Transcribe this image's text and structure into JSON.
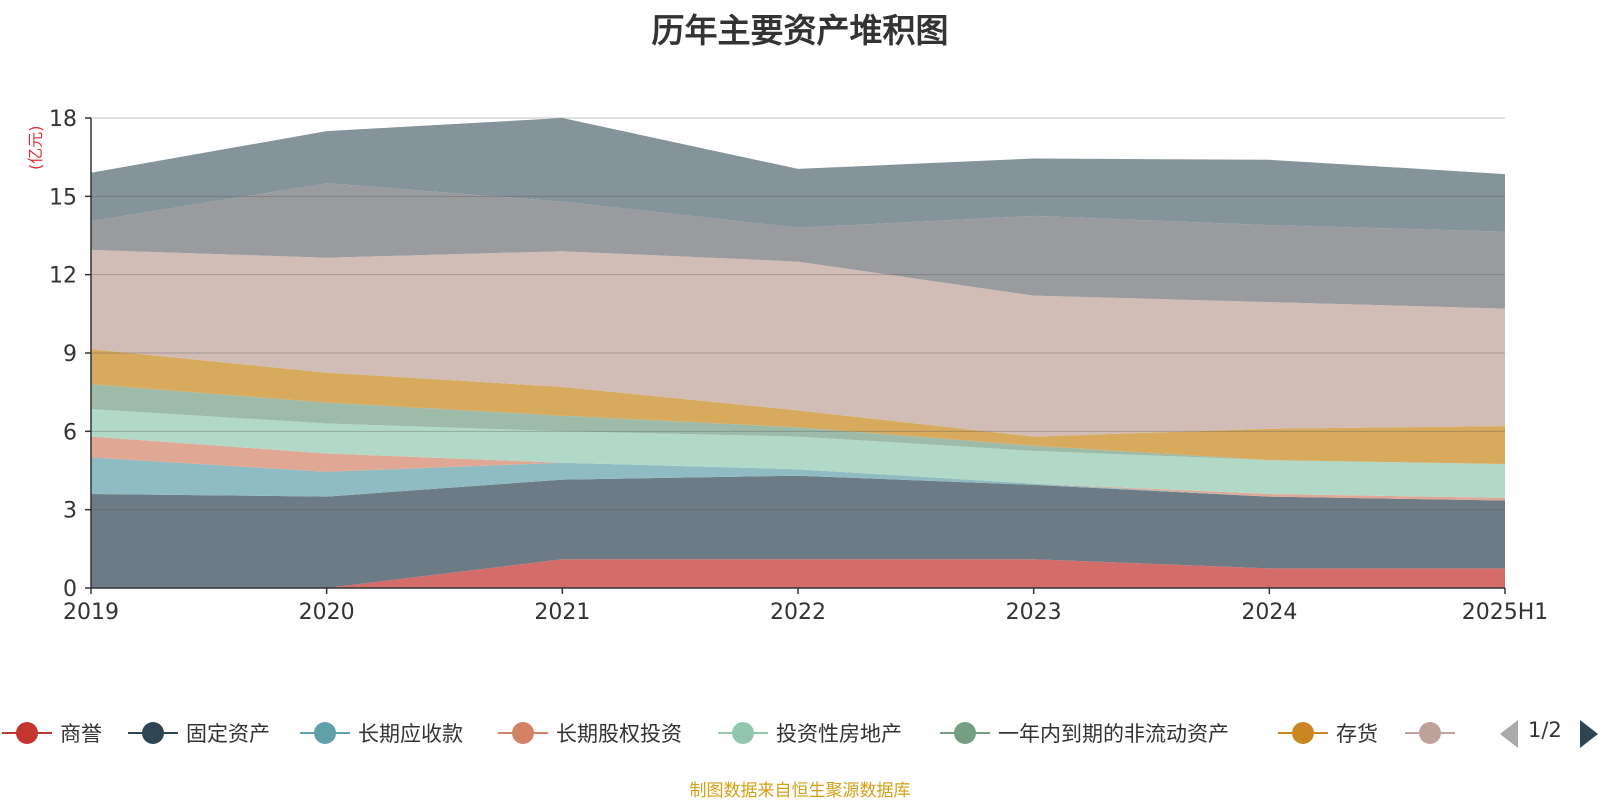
{
  "chart_data": {
    "type": "area",
    "stacked": true,
    "title": "历年主要资产堆积图",
    "unit_label": "(亿元)",
    "categories": [
      "2019",
      "2020",
      "2021",
      "2022",
      "2023",
      "2024",
      "2025H1"
    ],
    "ylim": [
      0,
      18
    ],
    "yticks": [
      0,
      3,
      6,
      9,
      12,
      15,
      18
    ],
    "grid": true,
    "legend_position": "bottom",
    "series": [
      {
        "name": "商誉",
        "legend_color": "#c23531",
        "fill": "#d46c6a",
        "values": [
          0.0,
          0.0,
          1.1,
          1.1,
          1.1,
          0.75,
          0.75
        ]
      },
      {
        "name": "固定资产",
        "legend_color": "#2f4554",
        "fill": "#6d7b87",
        "values": [
          3.6,
          3.5,
          3.05,
          3.2,
          2.85,
          2.75,
          2.6
        ]
      },
      {
        "name": "长期应收款",
        "legend_color": "#61a0a8",
        "fill": "#8fbcc2",
        "values": [
          1.4,
          0.95,
          0.65,
          0.25,
          0.05,
          0.0,
          0.0
        ]
      },
      {
        "name": "长期股权投资",
        "legend_color": "#d48265",
        "fill": "#e1a795",
        "values": [
          0.8,
          0.7,
          0.0,
          0.0,
          0.0,
          0.1,
          0.1
        ]
      },
      {
        "name": "投资性房地产",
        "legend_color": "#91c7ae",
        "fill": "#b2d9c7",
        "values": [
          1.05,
          1.15,
          1.2,
          1.25,
          1.25,
          1.3,
          1.3
        ]
      },
      {
        "name": "一年内到期的非流动资产",
        "legend_color": "#749f83",
        "fill": "#9dbba8",
        "values": [
          0.95,
          0.8,
          0.6,
          0.35,
          0.2,
          0.0,
          0.0
        ]
      },
      {
        "name": "存货",
        "legend_color": "#ca8622",
        "fill": "#d8aa5e",
        "values": [
          1.35,
          1.15,
          1.1,
          0.65,
          0.35,
          1.2,
          1.45
        ]
      },
      {
        "name": "",
        "legend_color": "#bda29a",
        "fill": "#d1bcb6",
        "values": [
          3.8,
          4.4,
          5.2,
          5.7,
          5.4,
          4.85,
          4.5
        ]
      },
      {
        "name": "",
        "legend_color": "#6e7074",
        "fill": "#9a9b9f",
        "values": [
          1.1,
          2.85,
          1.9,
          1.3,
          3.05,
          2.95,
          2.95
        ]
      },
      {
        "name": "",
        "legend_color": "#546570",
        "fill": "#85939b",
        "values": [
          1.85,
          2.0,
          3.2,
          2.25,
          2.2,
          2.5,
          2.2
        ]
      }
    ]
  },
  "legend": {
    "page_text": "1/2"
  },
  "source_text": "制图数据来自恒生聚源数据库"
}
